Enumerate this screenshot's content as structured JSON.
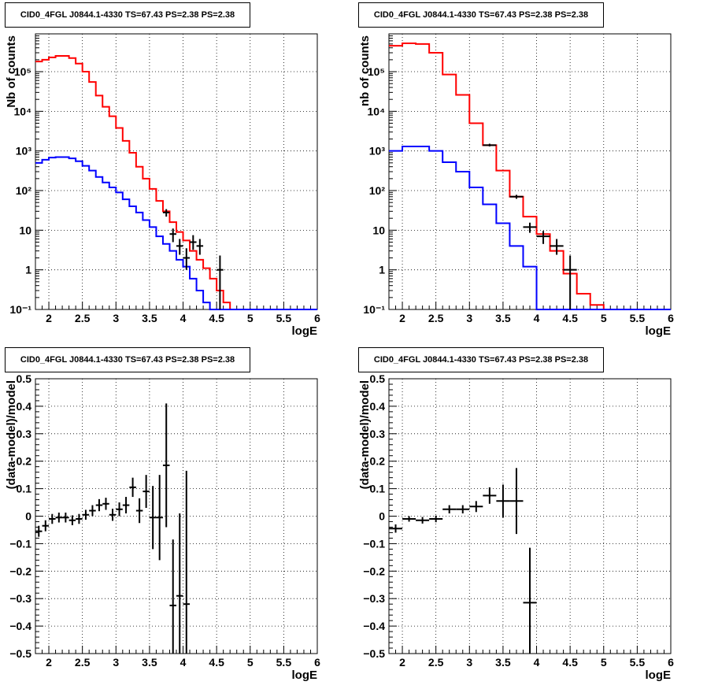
{
  "chart_data": [
    {
      "type": "step",
      "title": "CID0_4FGL J0844.1-4330 TS=67.43 PS=2.38 PS=2.38",
      "xlabel": "logE",
      "ylabel": "Nb of counts",
      "xlim": [
        1.8,
        6.0
      ],
      "ylim": [
        0.1,
        900000
      ],
      "yscale": "log",
      "grid": true,
      "x_ticks": [
        "2",
        "2.5",
        "3",
        "3.5",
        "4",
        "4.5",
        "5",
        "5.5",
        "6"
      ],
      "y_ticks": [
        "10⁻¹",
        "1",
        "10",
        "10²",
        "10³",
        "10⁴",
        "10⁵"
      ],
      "bin_width": 0.1,
      "series": [
        {
          "color": "#ff0000",
          "bins_lo": [
            1.8,
            1.9,
            2.0,
            2.1,
            2.2,
            2.3,
            2.4,
            2.5,
            2.6,
            2.7,
            2.8,
            2.9,
            3.0,
            3.1,
            3.2,
            3.3,
            3.4,
            3.5,
            3.6,
            3.7,
            3.8,
            3.9,
            4.0,
            4.1,
            4.2,
            4.3,
            4.4,
            4.5,
            4.6,
            4.7
          ],
          "values": [
            180000,
            200000,
            230000,
            250000,
            250000,
            220000,
            160000,
            100000,
            55000,
            25000,
            13000,
            7500,
            3800,
            1800,
            900,
            400,
            200,
            110,
            55,
            30,
            16,
            9,
            5.5,
            3,
            1.8,
            1.1,
            0.6,
            0.3,
            0.15,
            0.1
          ]
        },
        {
          "color": "#0000ff",
          "bins_lo": [
            1.8,
            1.9,
            2.0,
            2.1,
            2.2,
            2.3,
            2.4,
            2.5,
            2.6,
            2.7,
            2.8,
            2.9,
            3.0,
            3.1,
            3.2,
            3.3,
            3.4,
            3.5,
            3.6,
            3.7,
            3.8,
            3.9,
            4.0,
            4.1,
            4.2,
            4.3,
            4.4,
            4.5,
            4.6,
            4.7
          ],
          "values": [
            500,
            600,
            680,
            700,
            700,
            650,
            550,
            420,
            320,
            220,
            160,
            120,
            90,
            60,
            40,
            28,
            18,
            12,
            7,
            4.5,
            3,
            1.8,
            1.2,
            0.6,
            0.3,
            0.15,
            0.1,
            0.1,
            0.1,
            0.1
          ]
        }
      ],
      "points": [
        {
          "x": 3.75,
          "y": 28,
          "ylo": 22,
          "yhi": 34
        },
        {
          "x": 3.85,
          "y": 8,
          "ylo": 5,
          "yhi": 11
        },
        {
          "x": 3.95,
          "y": 4,
          "ylo": 2.4,
          "yhi": 6
        },
        {
          "x": 4.05,
          "y": 2,
          "ylo": 1,
          "yhi": 3.5
        },
        {
          "x": 4.15,
          "y": 5,
          "ylo": 3.2,
          "yhi": 7.5
        },
        {
          "x": 4.25,
          "y": 4,
          "ylo": 2.4,
          "yhi": 6
        },
        {
          "x": 4.55,
          "y": 1,
          "ylo": 0.1,
          "yhi": 2.3
        }
      ]
    },
    {
      "type": "step",
      "title": "CID0_4FGL J0844.1-4330 TS=67.43 PS=2.38 PS=2.38",
      "xlabel": "logE",
      "ylabel": "nb of counts",
      "xlim": [
        1.8,
        6.0
      ],
      "ylim": [
        0.1,
        900000
      ],
      "yscale": "log",
      "grid": true,
      "x_ticks": [
        "2",
        "2.5",
        "3",
        "3.5",
        "4",
        "4.5",
        "5",
        "5.5",
        "6"
      ],
      "y_ticks": [
        "10⁻¹",
        "1",
        "10",
        "10²",
        "10³",
        "10⁴",
        "10⁵"
      ],
      "bin_width": 0.2,
      "series": [
        {
          "color": "#ff0000",
          "bins_lo": [
            1.8,
            2.0,
            2.2,
            2.4,
            2.6,
            2.8,
            3.0,
            3.2,
            3.4,
            3.6,
            3.8,
            4.0,
            4.2,
            4.4,
            4.6,
            4.8,
            5.0
          ],
          "values": [
            450000,
            520000,
            500000,
            300000,
            85000,
            26000,
            5000,
            1400,
            320,
            70,
            22,
            8,
            3,
            0.8,
            0.25,
            0.13,
            0.1
          ]
        },
        {
          "color": "#0000ff",
          "bins_lo": [
            1.8,
            2.0,
            2.2,
            2.4,
            2.6,
            2.8,
            3.0,
            3.2,
            3.4,
            3.6,
            3.8,
            4.0,
            4.2,
            4.4,
            4.6,
            4.8,
            5.0
          ],
          "values": [
            1000,
            1300,
            1300,
            1000,
            520,
            300,
            120,
            45,
            15,
            4,
            1.2,
            0.1,
            0.1,
            0.1,
            0.1,
            0.1,
            0.1
          ]
        }
      ],
      "points": [
        {
          "x": 3.3,
          "y": 1400,
          "ylo": 1300,
          "yhi": 1520
        },
        {
          "x": 3.7,
          "y": 70,
          "ylo": 62,
          "yhi": 78
        },
        {
          "x": 3.9,
          "y": 12,
          "ylo": 8.6,
          "yhi": 15.5
        },
        {
          "x": 4.1,
          "y": 7,
          "ylo": 4.5,
          "yhi": 9.6
        },
        {
          "x": 4.3,
          "y": 4,
          "ylo": 2.4,
          "yhi": 6
        },
        {
          "x": 4.5,
          "y": 1,
          "ylo": 0.1,
          "yhi": 2.3
        }
      ]
    },
    {
      "type": "errorbar",
      "title": "CID0_4FGL J0844.1-4330 TS=67.43 PS=2.38 PS=2.38",
      "xlabel": "logE",
      "ylabel": "(data-model)/model",
      "xlim": [
        1.8,
        6.0
      ],
      "ylim": [
        -0.5,
        0.5
      ],
      "grid": true,
      "x_ticks": [
        "2",
        "2.5",
        "3",
        "3.5",
        "4",
        "4.5",
        "5",
        "5.5",
        "6"
      ],
      "y_ticks": [
        "−0.5",
        "−0.4",
        "−0.3",
        "−0.2",
        "−0.1",
        "0",
        "0.1",
        "0.2",
        "0.3",
        "0.4",
        "0.5"
      ],
      "x_halfwidth": 0.05,
      "points": [
        {
          "x": 1.85,
          "y": -0.055,
          "err": 0.02
        },
        {
          "x": 1.95,
          "y": -0.035,
          "err": 0.02
        },
        {
          "x": 2.05,
          "y": -0.01,
          "err": 0.018
        },
        {
          "x": 2.15,
          "y": -0.005,
          "err": 0.018
        },
        {
          "x": 2.25,
          "y": -0.005,
          "err": 0.018
        },
        {
          "x": 2.35,
          "y": -0.015,
          "err": 0.018
        },
        {
          "x": 2.45,
          "y": -0.01,
          "err": 0.018
        },
        {
          "x": 2.55,
          "y": 0.005,
          "err": 0.018
        },
        {
          "x": 2.65,
          "y": 0.02,
          "err": 0.02
        },
        {
          "x": 2.75,
          "y": 0.04,
          "err": 0.022
        },
        {
          "x": 2.85,
          "y": 0.045,
          "err": 0.022
        },
        {
          "x": 2.95,
          "y": 0.005,
          "err": 0.022
        },
        {
          "x": 3.05,
          "y": 0.025,
          "err": 0.025
        },
        {
          "x": 3.15,
          "y": 0.04,
          "err": 0.03
        },
        {
          "x": 3.25,
          "y": 0.105,
          "err": 0.035
        },
        {
          "x": 3.35,
          "y": 0.02,
          "err": 0.045
        },
        {
          "x": 3.45,
          "y": 0.09,
          "err": 0.06
        },
        {
          "x": 3.55,
          "y": -0.005,
          "err": 0.115
        },
        {
          "x": 3.65,
          "y": -0.005,
          "err": 0.155
        },
        {
          "x": 3.75,
          "y": 0.185,
          "err": 0.225
        },
        {
          "x": 3.85,
          "y": -0.325,
          "err": 0.24
        },
        {
          "x": 3.95,
          "y": -0.29,
          "err": 0.3
        },
        {
          "x": 4.05,
          "y": -0.32,
          "err": 0.485
        }
      ]
    },
    {
      "type": "errorbar",
      "title": "CID0_4FGL J0844.1-4330 TS=67.43 PS=2.38 PS=2.38",
      "xlabel": "logE",
      "ylabel": "(data-model)/model",
      "xlim": [
        1.8,
        6.0
      ],
      "ylim": [
        -0.5,
        0.5
      ],
      "grid": true,
      "x_ticks": [
        "2",
        "2.5",
        "3",
        "3.5",
        "4",
        "4.5",
        "5",
        "5.5",
        "6"
      ],
      "y_ticks": [
        "−0.5",
        "−0.4",
        "−0.3",
        "−0.2",
        "−0.1",
        "0",
        "0.1",
        "0.2",
        "0.3",
        "0.4",
        "0.5"
      ],
      "x_halfwidth": 0.1,
      "points": [
        {
          "x": 1.9,
          "y": -0.045,
          "err": 0.015
        },
        {
          "x": 2.1,
          "y": -0.01,
          "err": 0.01
        },
        {
          "x": 2.3,
          "y": -0.015,
          "err": 0.012
        },
        {
          "x": 2.5,
          "y": -0.01,
          "err": 0.012
        },
        {
          "x": 2.7,
          "y": 0.025,
          "err": 0.015
        },
        {
          "x": 2.9,
          "y": 0.025,
          "err": 0.015
        },
        {
          "x": 3.1,
          "y": 0.035,
          "err": 0.02
        },
        {
          "x": 3.3,
          "y": 0.075,
          "err": 0.03
        },
        {
          "x": 3.5,
          "y": 0.055,
          "err": 0.06
        },
        {
          "x": 3.7,
          "y": 0.055,
          "err": 0.12
        },
        {
          "x": 3.9,
          "y": -0.315,
          "err": 0.2
        }
      ]
    }
  ]
}
